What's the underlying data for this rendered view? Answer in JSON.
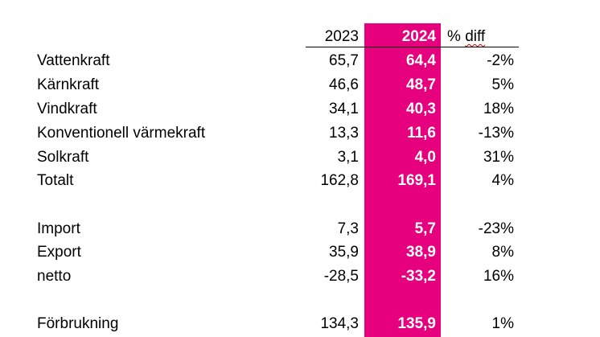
{
  "header": {
    "col_2023": "2023",
    "col_2024": "2024",
    "col_diff_prefix": "% ",
    "col_diff_word": "diff"
  },
  "rows": [
    {
      "label": "Vattenkraft",
      "v2023": "65,7",
      "v2024": "64,4",
      "diff": "-2%"
    },
    {
      "label": "Kärnkraft",
      "v2023": "46,6",
      "v2024": "48,7",
      "diff": "5%"
    },
    {
      "label": "Vindkraft",
      "v2023": "34,1",
      "v2024": "40,3",
      "diff": "18%"
    },
    {
      "label": "Konventionell värmekraft",
      "v2023": "13,3",
      "v2024": "11,6",
      "diff": "-13%"
    },
    {
      "label": "Solkraft",
      "v2023": "3,1",
      "v2024": "4,0",
      "diff": "31%"
    },
    {
      "label": "Totalt",
      "v2023": "162,8",
      "v2024": "169,1",
      "diff": "4%"
    },
    {
      "label": "Import",
      "v2023": "7,3",
      "v2024": "5,7",
      "diff": "-23%"
    },
    {
      "label": "Export",
      "v2023": "35,9",
      "v2024": "38,9",
      "diff": "8%"
    },
    {
      "label": "netto",
      "v2023": "-28,5",
      "v2024": "-33,2",
      "diff": "16%"
    },
    {
      "label": "Förbrukning",
      "v2023": "134,3",
      "v2024": "135,9",
      "diff": "1%"
    }
  ],
  "colors": {
    "highlight": "#e6007e",
    "highlight_text": "#ffffff",
    "text": "#000000"
  }
}
